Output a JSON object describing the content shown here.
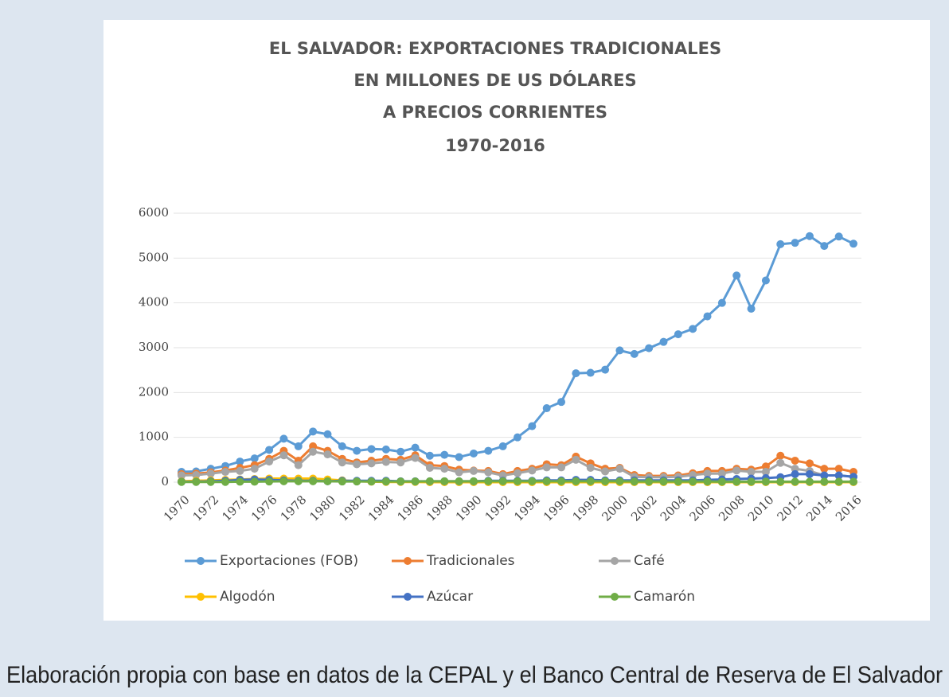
{
  "caption": "Elaboración propia con base en datos de la CEPAL y el Banco Central de Reserva de El Salvador",
  "chart_data": {
    "type": "line",
    "title": [
      "EL SALVADOR: EXPORTACIONES TRADICIONALES",
      "EN MILLONES DE US DÓLARES",
      "A PRECIOS CORRIENTES",
      "1970-2016"
    ],
    "x": [
      1970,
      1971,
      1972,
      1973,
      1974,
      1975,
      1976,
      1977,
      1978,
      1979,
      1980,
      1981,
      1982,
      1983,
      1984,
      1985,
      1986,
      1987,
      1988,
      1989,
      1990,
      1991,
      1992,
      1993,
      1994,
      1995,
      1996,
      1997,
      1998,
      1999,
      2000,
      2001,
      2002,
      2003,
      2004,
      2005,
      2006,
      2007,
      2008,
      2009,
      2010,
      2011,
      2012,
      2013,
      2014,
      2015,
      2016
    ],
    "xlim": [
      1970,
      2016
    ],
    "xticks": [
      1970,
      1972,
      1974,
      1976,
      1978,
      1980,
      1982,
      1984,
      1986,
      1988,
      1990,
      1992,
      1994,
      1996,
      1998,
      2000,
      2002,
      2004,
      2006,
      2008,
      2010,
      2012,
      2014,
      2016
    ],
    "ylim": [
      0,
      6000
    ],
    "yticks": [
      0,
      1000,
      2000,
      3000,
      4000,
      5000,
      6000
    ],
    "grid": true,
    "legend": "bottom",
    "series": [
      {
        "name": "Exportaciones (FOB)",
        "color": "#5b9bd5",
        "values": [
          230,
          240,
          300,
          360,
          460,
          530,
          720,
          970,
          800,
          1130,
          1070,
          800,
          700,
          740,
          730,
          680,
          770,
          590,
          610,
          560,
          640,
          700,
          800,
          1000,
          1250,
          1650,
          1790,
          2430,
          2440,
          2510,
          2940,
          2860,
          2990,
          3130,
          3300,
          3420,
          3700,
          4000,
          4610,
          3870,
          4500,
          5310,
          5340,
          5490,
          5270,
          5480,
          5320
        ]
      },
      {
        "name": "Tradicionales",
        "color": "#ed7d31",
        "values": [
          180,
          190,
          220,
          260,
          320,
          380,
          520,
          700,
          480,
          800,
          700,
          520,
          440,
          480,
          520,
          500,
          600,
          380,
          360,
          280,
          260,
          250,
          180,
          250,
          300,
          400,
          380,
          570,
          420,
          300,
          320,
          160,
          140,
          140,
          150,
          200,
          250,
          250,
          300,
          280,
          350,
          590,
          480,
          420,
          300,
          300,
          230
        ]
      },
      {
        "name": "Café",
        "color": "#a5a5a5",
        "values": [
          150,
          160,
          190,
          230,
          250,
          300,
          460,
          600,
          380,
          680,
          620,
          440,
          400,
          420,
          450,
          440,
          540,
          320,
          300,
          220,
          250,
          220,
          150,
          200,
          260,
          330,
          330,
          500,
          320,
          240,
          300,
          120,
          110,
          110,
          120,
          160,
          190,
          190,
          260,
          230,
          230,
          430,
          300,
          250,
          150,
          150,
          120
        ]
      },
      {
        "name": "Algodón",
        "color": "#ffc000",
        "values": [
          20,
          30,
          40,
          50,
          60,
          70,
          80,
          80,
          80,
          80,
          60,
          40,
          20,
          10,
          5,
          5,
          5,
          0,
          0,
          0,
          0,
          0,
          0,
          0,
          0,
          0,
          0,
          0,
          0,
          0,
          0,
          0,
          0,
          0,
          0,
          0,
          0,
          0,
          0,
          0,
          0,
          0,
          0,
          0,
          0,
          0,
          0
        ]
      },
      {
        "name": "Azúcar",
        "color": "#4472c4",
        "values": [
          10,
          10,
          20,
          30,
          50,
          60,
          50,
          40,
          30,
          30,
          20,
          30,
          30,
          30,
          30,
          20,
          20,
          20,
          20,
          20,
          20,
          30,
          30,
          30,
          30,
          40,
          40,
          50,
          50,
          40,
          40,
          40,
          40,
          40,
          40,
          40,
          50,
          60,
          70,
          80,
          90,
          110,
          180,
          180,
          150,
          150,
          120
        ]
      },
      {
        "name": "Camarón",
        "color": "#70ad47",
        "values": [
          5,
          5,
          5,
          5,
          10,
          10,
          15,
          20,
          20,
          20,
          20,
          15,
          15,
          15,
          15,
          15,
          15,
          20,
          20,
          20,
          20,
          20,
          20,
          20,
          20,
          20,
          20,
          20,
          20,
          20,
          20,
          15,
          15,
          15,
          15,
          15,
          15,
          10,
          10,
          10,
          10,
          10,
          10,
          10,
          10,
          10,
          10
        ]
      }
    ]
  }
}
